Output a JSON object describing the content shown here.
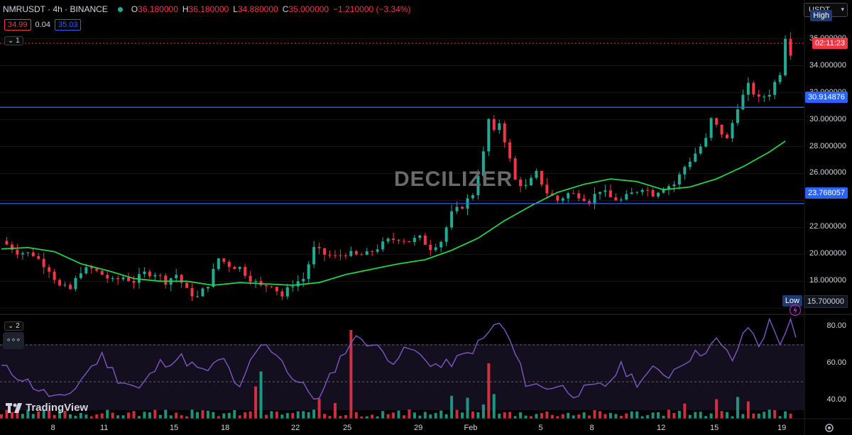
{
  "header": {
    "symbol": "NMRUSDT · 4h · BINANCE",
    "open_label": "O",
    "open": "36.180000",
    "high_label": "H",
    "high": "36.180000",
    "low_label": "L",
    "low": "34.880000",
    "close_label": "C",
    "close": "35.000000",
    "change": "−1.210000 (−3.34%)"
  },
  "pills": {
    "bid": "34.99",
    "spread": "0.04",
    "ask": "35.03"
  },
  "pane_buttons": {
    "main": "1",
    "rsi": "2",
    "more": "∘∘∘"
  },
  "currency": "USDT",
  "watermark": "DECILIZER",
  "logo": {
    "text": "TradingView",
    "icon": "tradingview-logo-icon"
  },
  "price_axis": {
    "labels": [
      "36.000000",
      "34.000000",
      "32.000000",
      "30.000000",
      "28.000000",
      "26.000000",
      "22.000000",
      "20.000000",
      "18.000000"
    ],
    "high_tag": "High",
    "low_tag": "Low",
    "countdown": "02:11:23",
    "line_upper": "30.914876",
    "line_lower": "23.768057",
    "low_value": "15.700000"
  },
  "rsi_axis": {
    "labels": [
      "80.00",
      "60.00",
      "40.00"
    ]
  },
  "time_axis": {
    "labels": [
      "8",
      "11",
      "15",
      "18",
      "22",
      "25",
      "29",
      "Feb",
      "5",
      "8",
      "12",
      "15",
      "19"
    ]
  },
  "colors": {
    "up": "#22ab94",
    "down": "#f23645",
    "ma": "#26d14a",
    "hline": "#2962ff",
    "rsi": "#7e57c2"
  },
  "chart_data": {
    "type": "candlestick",
    "ylim": [
      15.7,
      37.3
    ],
    "horizontal_lines": [
      30.914876,
      23.768057
    ],
    "current_price": 35.0,
    "close_path": [
      [
        0,
        21.0
      ],
      [
        3,
        20.2
      ],
      [
        6,
        20.0
      ],
      [
        9,
        18.9
      ],
      [
        11,
        17.6
      ],
      [
        13,
        17.4
      ],
      [
        15,
        18.8
      ],
      [
        17,
        18.9
      ],
      [
        19,
        18.5
      ],
      [
        21,
        18.0
      ],
      [
        23,
        18.3
      ],
      [
        25,
        18.0
      ],
      [
        27,
        18.6
      ],
      [
        29,
        18.6
      ],
      [
        31,
        18.0
      ],
      [
        33,
        18.5
      ],
      [
        35,
        17.3
      ],
      [
        37,
        16.8
      ],
      [
        39,
        17.8
      ],
      [
        41,
        19.7
      ],
      [
        43,
        19.2
      ],
      [
        45,
        19.0
      ],
      [
        47,
        18.2
      ],
      [
        49,
        17.6
      ],
      [
        51,
        17.8
      ],
      [
        53,
        16.9
      ],
      [
        55,
        17.8
      ],
      [
        57,
        18.2
      ],
      [
        59,
        20.4
      ],
      [
        61,
        20.0
      ],
      [
        63,
        19.8
      ],
      [
        65,
        20.1
      ],
      [
        67,
        19.9
      ],
      [
        69,
        20.0
      ],
      [
        71,
        20.5
      ],
      [
        73,
        21.0
      ],
      [
        75,
        21.2
      ],
      [
        77,
        21.0
      ],
      [
        79,
        21.2
      ],
      [
        81,
        20.5
      ],
      [
        83,
        21.0
      ],
      [
        85,
        23.0
      ],
      [
        87,
        23.6
      ],
      [
        89,
        24.5
      ],
      [
        91,
        27.5
      ],
      [
        92,
        30.0
      ],
      [
        93,
        29.0
      ],
      [
        94,
        29.8
      ],
      [
        95,
        28.5
      ],
      [
        96,
        27.0
      ],
      [
        97,
        25.5
      ],
      [
        99,
        25.0
      ],
      [
        101,
        26.0
      ],
      [
        103,
        24.6
      ],
      [
        105,
        24.0
      ],
      [
        107,
        24.5
      ],
      [
        109,
        24.4
      ],
      [
        111,
        24.0
      ],
      [
        113,
        24.8
      ],
      [
        115,
        24.2
      ],
      [
        117,
        24.0
      ],
      [
        119,
        24.5
      ],
      [
        121,
        25.0
      ],
      [
        123,
        24.5
      ],
      [
        125,
        25.0
      ],
      [
        127,
        25.2
      ],
      [
        129,
        26.5
      ],
      [
        131,
        27.5
      ],
      [
        133,
        28.5
      ],
      [
        134,
        30.0
      ],
      [
        135,
        29.5
      ],
      [
        137,
        28.5
      ],
      [
        139,
        31.0
      ],
      [
        141,
        32.5
      ],
      [
        143,
        31.5
      ],
      [
        145,
        32.0
      ],
      [
        147,
        33.5
      ],
      [
        148,
        36.2
      ],
      [
        149,
        35.0
      ]
    ],
    "ma_path": [
      [
        0,
        20.4
      ],
      [
        5,
        20.5
      ],
      [
        10,
        20.2
      ],
      [
        15,
        19.3
      ],
      [
        20,
        18.8
      ],
      [
        25,
        18.2
      ],
      [
        30,
        18.0
      ],
      [
        35,
        18.0
      ],
      [
        40,
        17.7
      ],
      [
        45,
        17.9
      ],
      [
        50,
        17.8
      ],
      [
        55,
        17.7
      ],
      [
        60,
        17.9
      ],
      [
        65,
        18.5
      ],
      [
        70,
        18.9
      ],
      [
        75,
        19.3
      ],
      [
        80,
        19.6
      ],
      [
        85,
        20.3
      ],
      [
        90,
        21.2
      ],
      [
        95,
        22.5
      ],
      [
        100,
        23.6
      ],
      [
        105,
        24.6
      ],
      [
        110,
        25.2
      ],
      [
        115,
        25.6
      ],
      [
        120,
        25.4
      ],
      [
        125,
        24.8
      ],
      [
        130,
        25.0
      ],
      [
        135,
        25.6
      ],
      [
        140,
        26.5
      ],
      [
        145,
        27.6
      ],
      [
        148,
        28.4
      ]
    ],
    "rsi": {
      "ylim": [
        30,
        85
      ],
      "levels": [
        70,
        50,
        30
      ],
      "path": [
        [
          0,
          58
        ],
        [
          4,
          52
        ],
        [
          8,
          44
        ],
        [
          12,
          40
        ],
        [
          16,
          55
        ],
        [
          19,
          64
        ],
        [
          22,
          52
        ],
        [
          26,
          46
        ],
        [
          30,
          60
        ],
        [
          34,
          63
        ],
        [
          38,
          55
        ],
        [
          42,
          62
        ],
        [
          45,
          45
        ],
        [
          47,
          60
        ],
        [
          49,
          70
        ],
        [
          52,
          66
        ],
        [
          55,
          52
        ],
        [
          58,
          45
        ],
        [
          60,
          40
        ],
        [
          63,
          58
        ],
        [
          66,
          72
        ],
        [
          68,
          74
        ],
        [
          71,
          68
        ],
        [
          74,
          62
        ],
        [
          77,
          68
        ],
        [
          80,
          62
        ],
        [
          83,
          58
        ],
        [
          86,
          62
        ],
        [
          88,
          65
        ],
        [
          91,
          73
        ],
        [
          93,
          80
        ],
        [
          94,
          82
        ],
        [
          96,
          72
        ],
        [
          99,
          50
        ],
        [
          102,
          47
        ],
        [
          105,
          48
        ],
        [
          108,
          44
        ],
        [
          111,
          46
        ],
        [
          114,
          48
        ],
        [
          117,
          58
        ],
        [
          120,
          50
        ],
        [
          123,
          56
        ],
        [
          126,
          54
        ],
        [
          129,
          62
        ],
        [
          132,
          66
        ],
        [
          135,
          72
        ],
        [
          138,
          62
        ],
        [
          141,
          80
        ],
        [
          143,
          70
        ],
        [
          145,
          82
        ],
        [
          147,
          72
        ],
        [
          149,
          82
        ],
        [
          150,
          72
        ]
      ]
    }
  }
}
